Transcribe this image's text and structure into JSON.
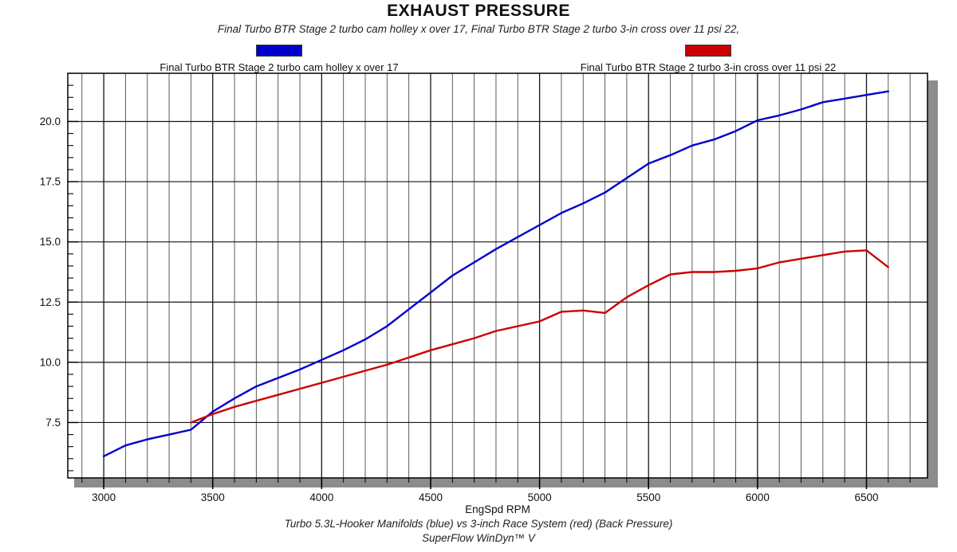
{
  "title": "EXHAUST PRESSURE",
  "subtitle": "Final Turbo BTR Stage 2 turbo cam holley x over 17, Final Turbo BTR Stage 2 turbo 3-in cross over 11 psi 22,",
  "legend": [
    {
      "label": "Final Turbo BTR Stage 2 turbo cam holley x over 17",
      "color": "#0000cc"
    },
    {
      "label": "Final Turbo BTR Stage 2 turbo 3-in cross over 11 psi 22",
      "color": "#cc0000"
    }
  ],
  "footer": {
    "line1": "Turbo 5.3L-Hooker Manifolds (blue) vs 3-inch Race System (red) (Back Pressure)",
    "line2": "SuperFlow WinDyn™ V"
  },
  "chart_data": {
    "type": "line",
    "title": "EXHAUST PRESSURE",
    "xlabel": "EngSpd RPM",
    "ylabel": "",
    "xlim": [
      2835,
      6780
    ],
    "ylim": [
      5.2,
      22.0
    ],
    "x_major_ticks": [
      3000,
      3500,
      4000,
      4500,
      5000,
      5500,
      6000,
      6500
    ],
    "x_minor_step": 100,
    "y_major_ticks": [
      7.5,
      10.0,
      12.5,
      15.0,
      17.5,
      20.0
    ],
    "y_minor_step": 0.5,
    "grid": {
      "vertical_minor_every_rpm": 100,
      "horizontal_major_only": true
    },
    "legend_position": "top",
    "colors": {
      "grid_minor": "#4a4a4a",
      "grid_major": "#161616",
      "frame": "#000000",
      "shadow": "#8c8c8c"
    },
    "series": [
      {
        "name": "Final Turbo BTR Stage 2 turbo cam holley x over 17",
        "color": "#0000cc",
        "x": [
          3000,
          3100,
          3200,
          3300,
          3400,
          3500,
          3600,
          3700,
          3800,
          3900,
          4000,
          4100,
          4200,
          4300,
          4400,
          4500,
          4600,
          4700,
          4800,
          4900,
          5000,
          5100,
          5200,
          5300,
          5400,
          5500,
          5600,
          5700,
          5800,
          5900,
          6000,
          6100,
          6200,
          6300,
          6400,
          6500,
          6600
        ],
        "values": [
          6.1,
          6.55,
          6.8,
          7.0,
          7.2,
          7.95,
          8.5,
          9.0,
          9.35,
          9.7,
          10.1,
          10.5,
          10.95,
          11.5,
          12.2,
          12.9,
          13.6,
          14.15,
          14.7,
          15.2,
          15.7,
          16.2,
          16.6,
          17.05,
          17.65,
          18.25,
          18.6,
          19.0,
          19.25,
          19.6,
          20.05,
          20.25,
          20.5,
          20.8,
          20.95,
          21.1,
          21.25
        ]
      },
      {
        "name": "Final Turbo BTR Stage 2 turbo 3-in cross over 11 psi 22",
        "color": "#cc0000",
        "x": [
          3400,
          3500,
          3600,
          3700,
          3800,
          3900,
          4000,
          4100,
          4200,
          4300,
          4400,
          4500,
          4600,
          4700,
          4800,
          4900,
          5000,
          5100,
          5200,
          5300,
          5400,
          5500,
          5600,
          5700,
          5800,
          5900,
          6000,
          6100,
          6200,
          6300,
          6400,
          6500,
          6600
        ],
        "values": [
          7.5,
          7.85,
          8.15,
          8.4,
          8.65,
          8.9,
          9.15,
          9.4,
          9.65,
          9.9,
          10.2,
          10.5,
          10.75,
          11.0,
          11.3,
          11.5,
          11.7,
          12.1,
          12.15,
          12.05,
          12.7,
          13.2,
          13.65,
          13.75,
          13.75,
          13.8,
          13.9,
          14.15,
          14.3,
          14.45,
          14.6,
          14.65,
          13.95
        ]
      }
    ]
  }
}
